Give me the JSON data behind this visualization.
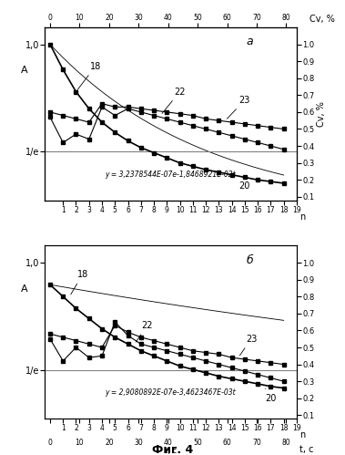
{
  "one_over_e": 0.3679,
  "formula_a": "y = 3,2378544E-07e-1,8468921E-02t",
  "formula_b": "y = 2,9080892E-07e-3,4623467E-03t",
  "subplot_a": "a",
  "subplot_b": "б",
  "fig_title": "Фиг. 4",
  "n_ticks": [
    1,
    2,
    3,
    4,
    5,
    6,
    7,
    8,
    9,
    10,
    11,
    12,
    13,
    14,
    15,
    16,
    17,
    18,
    19
  ],
  "t_ticks": [
    0,
    10,
    20,
    30,
    40,
    50,
    60,
    70,
    80
  ],
  "cv_ticks": [
    0.1,
    0.2,
    0.3,
    0.4,
    0.5,
    0.6,
    0.7,
    0.8,
    0.9,
    1.0
  ],
  "line18a": [
    1.0,
    0.85,
    0.72,
    0.62,
    0.54,
    0.48,
    0.43,
    0.39,
    0.36,
    0.33,
    0.3,
    0.28,
    0.26,
    0.245,
    0.23,
    0.215,
    0.2,
    0.19,
    0.18
  ],
  "line22a": [
    0.57,
    0.42,
    0.47,
    0.44,
    0.63,
    0.58,
    0.62,
    0.6,
    0.58,
    0.56,
    0.54,
    0.52,
    0.5,
    0.48,
    0.46,
    0.44,
    0.42,
    0.4,
    0.38
  ],
  "line23a": [
    0.6,
    0.58,
    0.56,
    0.54,
    0.65,
    0.63,
    0.63,
    0.62,
    0.61,
    0.6,
    0.59,
    0.58,
    0.56,
    0.55,
    0.54,
    0.53,
    0.52,
    0.51,
    0.5
  ],
  "line18b": [
    0.87,
    0.8,
    0.73,
    0.67,
    0.61,
    0.56,
    0.52,
    0.48,
    0.45,
    0.42,
    0.39,
    0.37,
    0.35,
    0.33,
    0.315,
    0.3,
    0.285,
    0.27,
    0.26
  ],
  "line22b": [
    0.55,
    0.42,
    0.5,
    0.44,
    0.45,
    0.65,
    0.57,
    0.52,
    0.5,
    0.48,
    0.46,
    0.44,
    0.42,
    0.4,
    0.38,
    0.36,
    0.34,
    0.32,
    0.3
  ],
  "line23b": [
    0.58,
    0.56,
    0.54,
    0.52,
    0.5,
    0.63,
    0.59,
    0.56,
    0.54,
    0.52,
    0.5,
    0.48,
    0.47,
    0.46,
    0.44,
    0.43,
    0.42,
    0.41,
    0.4
  ]
}
